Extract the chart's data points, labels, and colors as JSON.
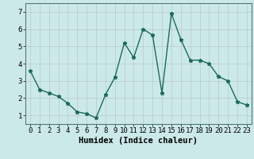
{
  "x": [
    0,
    1,
    2,
    3,
    4,
    5,
    6,
    7,
    8,
    9,
    10,
    11,
    12,
    13,
    14,
    15,
    16,
    17,
    18,
    19,
    20,
    21,
    22,
    23
  ],
  "y": [
    3.6,
    2.5,
    2.3,
    2.1,
    1.7,
    1.2,
    1.1,
    0.85,
    2.2,
    3.2,
    5.2,
    4.35,
    6.0,
    5.65,
    2.3,
    6.9,
    5.4,
    4.2,
    4.2,
    4.0,
    3.25,
    3.0,
    1.8,
    1.6
  ],
  "line_color": "#1a6b5a",
  "marker": "*",
  "marker_size": 3.5,
  "bg_color": "#cce9e9",
  "grid_color": "#b8c8c8",
  "xlabel": "Humidex (Indice chaleur)",
  "xlim": [
    -0.5,
    23.5
  ],
  "ylim": [
    0.5,
    7.5
  ],
  "yticks": [
    1,
    2,
    3,
    4,
    5,
    6,
    7
  ],
  "xticks": [
    0,
    1,
    2,
    3,
    4,
    5,
    6,
    7,
    8,
    9,
    10,
    11,
    12,
    13,
    14,
    15,
    16,
    17,
    18,
    19,
    20,
    21,
    22,
    23
  ],
  "tick_fontsize": 6.5,
  "xlabel_fontsize": 7.5,
  "line_width": 1.0
}
